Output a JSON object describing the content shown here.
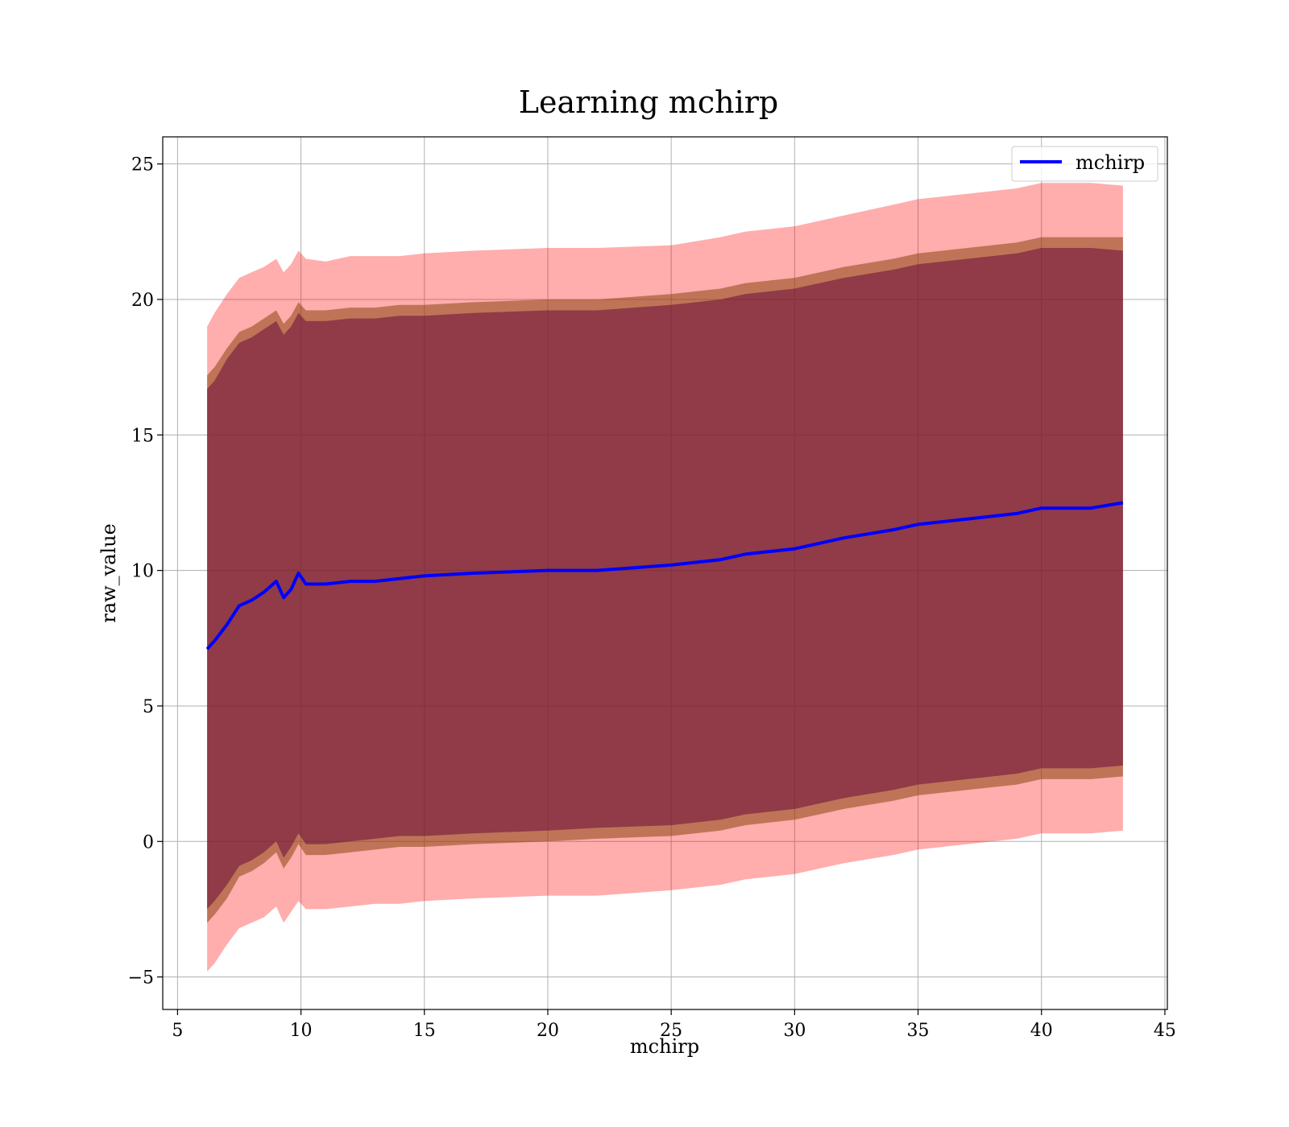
{
  "chart_data": {
    "type": "area",
    "title": "Learning mchirp",
    "xlabel": "mchirp",
    "ylabel": "raw_value",
    "xlim": [
      4.4,
      45.1
    ],
    "ylim": [
      -6.2,
      26.0
    ],
    "xticks": [
      5,
      10,
      15,
      20,
      25,
      30,
      35,
      40,
      45
    ],
    "yticks": [
      -5,
      0,
      5,
      10,
      15,
      20,
      25
    ],
    "ytick_labels": [
      "−5",
      "0",
      "5",
      "10",
      "15",
      "20",
      "25"
    ],
    "grid": true,
    "legend": {
      "entries": [
        "mchirp"
      ],
      "placement": "top-right"
    },
    "colors": {
      "line": "#0000ff",
      "outer_band": "#ff0000",
      "middle_band": "#8b4513",
      "inner_band": "#6a0d3a"
    },
    "x": [
      6.2,
      6.5,
      7.0,
      7.5,
      8.0,
      8.5,
      9.0,
      9.3,
      9.6,
      9.9,
      10.2,
      11.0,
      12.0,
      13.0,
      14.0,
      15.0,
      17.0,
      20.0,
      22.0,
      25.0,
      27.0,
      28.0,
      30.0,
      32.0,
      34.0,
      35.0,
      37.0,
      39.0,
      40.0,
      42.0,
      43.3
    ],
    "series": [
      {
        "name": "mchirp",
        "role": "line",
        "values": [
          7.1,
          7.4,
          8.0,
          8.7,
          8.9,
          9.2,
          9.6,
          9.0,
          9.3,
          9.9,
          9.5,
          9.5,
          9.6,
          9.6,
          9.7,
          9.8,
          9.9,
          10.0,
          10.0,
          10.2,
          10.4,
          10.6,
          10.8,
          11.2,
          11.5,
          11.7,
          11.9,
          12.1,
          12.3,
          12.3,
          12.5
        ]
      },
      {
        "role": "outer_band",
        "upper": [
          19.0,
          19.5,
          20.2,
          20.8,
          21.0,
          21.2,
          21.5,
          21.0,
          21.3,
          21.8,
          21.5,
          21.4,
          21.6,
          21.6,
          21.6,
          21.7,
          21.8,
          21.9,
          21.9,
          22.0,
          22.3,
          22.5,
          22.7,
          23.1,
          23.5,
          23.7,
          23.9,
          24.1,
          24.3,
          24.3,
          24.2
        ],
        "lower": [
          -4.8,
          -4.5,
          -3.8,
          -3.2,
          -3.0,
          -2.8,
          -2.4,
          -3.0,
          -2.6,
          -2.2,
          -2.5,
          -2.5,
          -2.4,
          -2.3,
          -2.3,
          -2.2,
          -2.1,
          -2.0,
          -2.0,
          -1.8,
          -1.6,
          -1.4,
          -1.2,
          -0.8,
          -0.5,
          -0.3,
          -0.1,
          0.1,
          0.3,
          0.3,
          0.4
        ]
      },
      {
        "role": "middle_band",
        "upper": [
          17.2,
          17.5,
          18.2,
          18.8,
          19.0,
          19.3,
          19.6,
          19.1,
          19.4,
          19.9,
          19.6,
          19.6,
          19.7,
          19.7,
          19.8,
          19.8,
          19.9,
          20.0,
          20.0,
          20.2,
          20.4,
          20.6,
          20.8,
          21.2,
          21.5,
          21.7,
          21.9,
          22.1,
          22.3,
          22.3,
          22.3
        ],
        "lower": [
          -3.0,
          -2.7,
          -2.1,
          -1.3,
          -1.1,
          -0.8,
          -0.4,
          -1.0,
          -0.6,
          -0.1,
          -0.5,
          -0.5,
          -0.4,
          -0.3,
          -0.2,
          -0.2,
          -0.1,
          0.0,
          0.1,
          0.2,
          0.4,
          0.6,
          0.8,
          1.2,
          1.5,
          1.7,
          1.9,
          2.1,
          2.3,
          2.3,
          2.4
        ]
      },
      {
        "role": "inner_band",
        "upper": [
          16.7,
          17.0,
          17.8,
          18.4,
          18.6,
          18.9,
          19.2,
          18.7,
          19.0,
          19.5,
          19.2,
          19.2,
          19.3,
          19.3,
          19.4,
          19.4,
          19.5,
          19.6,
          19.6,
          19.8,
          20.0,
          20.2,
          20.4,
          20.8,
          21.1,
          21.3,
          21.5,
          21.7,
          21.9,
          21.9,
          21.8
        ],
        "lower": [
          -2.5,
          -2.2,
          -1.6,
          -0.9,
          -0.7,
          -0.4,
          0.0,
          -0.6,
          -0.2,
          0.3,
          -0.1,
          -0.1,
          0.0,
          0.1,
          0.2,
          0.2,
          0.3,
          0.4,
          0.5,
          0.6,
          0.8,
          1.0,
          1.2,
          1.6,
          1.9,
          2.1,
          2.3,
          2.5,
          2.7,
          2.7,
          2.8
        ]
      }
    ]
  }
}
